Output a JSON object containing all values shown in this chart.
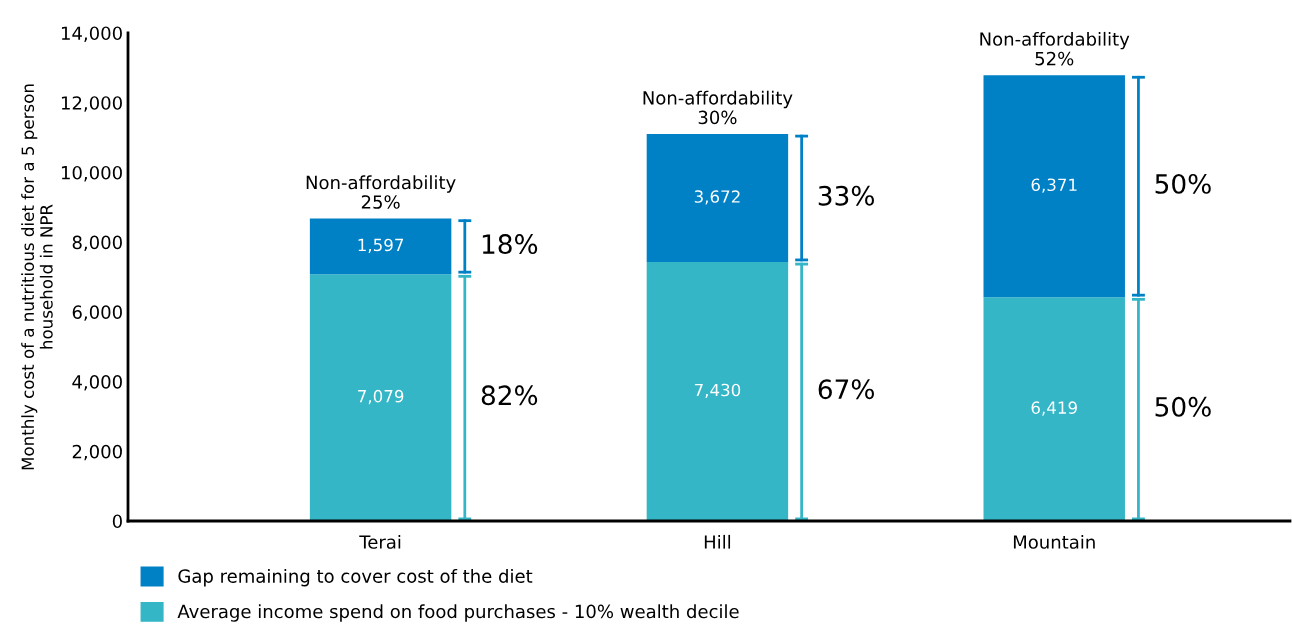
{
  "chart_data": {
    "type": "bar",
    "stacked": true,
    "ylabel": "Monthly cost of a nutritious diet for a 5 person\nhousehold in NPR",
    "categories": [
      "Terai",
      "Hill",
      "Mountain"
    ],
    "series": [
      {
        "name": "Average income spend on food purchases - 10% wealth decile",
        "color": "#35b6c6",
        "values": [
          7079,
          7430,
          6419
        ],
        "value_labels": [
          "7,079",
          "7,430",
          "6,419"
        ]
      },
      {
        "name": "Gap remaining to cover cost of the diet",
        "color": "#0081c6",
        "values": [
          1597,
          3672,
          6371
        ],
        "value_labels": [
          "1,597",
          "3,672",
          "6,371"
        ]
      }
    ],
    "ylim": [
      0,
      14000
    ],
    "yticks": [
      0,
      {
        "value": 2000,
        "label": "2,000"
      },
      {
        "value": 4000,
        "label": "4,000"
      },
      {
        "value": 6000,
        "label": "6,000"
      },
      {
        "value": 8000,
        "label": "8,000"
      },
      {
        "value": 10000,
        "label": "10,000"
      },
      {
        "value": 12000,
        "label": "12,000"
      },
      {
        "value": 14000,
        "label": "14,000"
      }
    ],
    "grid": false,
    "legend": "bottom left",
    "annotations": [
      {
        "text": "Non-affordability\n25%",
        "x": "Terai",
        "y": 8676
      },
      {
        "text": "Non-affordability\n30%",
        "x": "Hill",
        "y": 11102
      },
      {
        "text": "Non-affordability\n52%",
        "x": "Mountain",
        "y": 12790
      },
      "82%",
      "18%",
      "67%",
      "33%",
      "50%",
      "50%"
    ]
  }
}
